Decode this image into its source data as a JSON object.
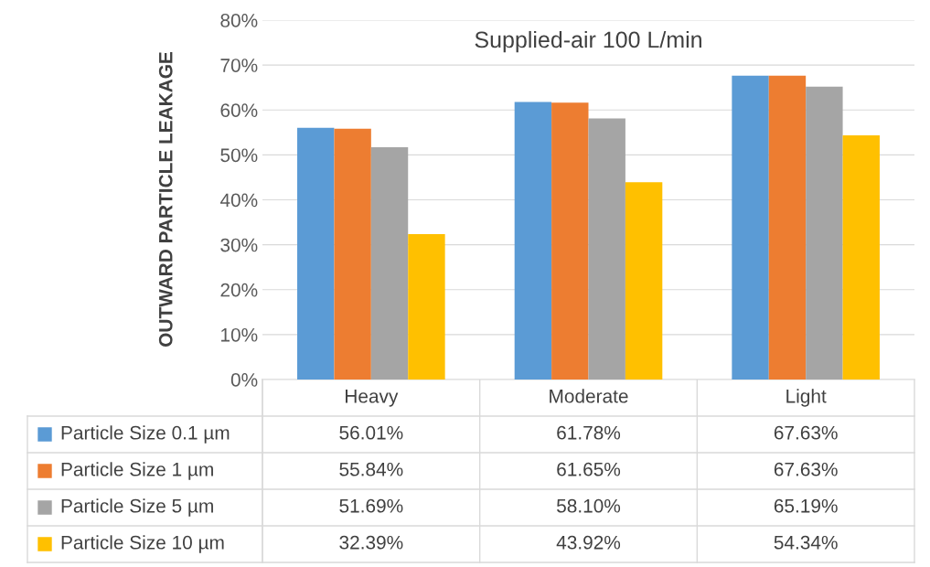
{
  "chart_data": {
    "type": "bar",
    "title": "Supplied-air 100 L/min",
    "ylabel": "OUTWARD PARTICLE LEAKAGE",
    "categories": [
      "Heavy",
      "Moderate",
      "Light"
    ],
    "series": [
      {
        "name": "Particle Size 0.1 µm",
        "color": "#5b9bd5",
        "values": [
          56.01,
          61.78,
          67.63
        ],
        "value_labels": [
          "56.01%",
          "61.78%",
          "67.63%"
        ]
      },
      {
        "name": "Particle Size 1 µm",
        "color": "#ed7d31",
        "values": [
          55.84,
          61.65,
          67.63
        ],
        "value_labels": [
          "55.84%",
          "61.65%",
          "67.63%"
        ]
      },
      {
        "name": "Particle Size 5 µm",
        "color": "#a5a5a5",
        "values": [
          51.69,
          58.1,
          65.19
        ],
        "value_labels": [
          "51.69%",
          "58.10%",
          "65.19%"
        ]
      },
      {
        "name": "Particle Size 10 µm",
        "color": "#ffc000",
        "values": [
          32.39,
          43.92,
          54.34
        ],
        "value_labels": [
          "32.39%",
          "43.92%",
          "54.34%"
        ]
      }
    ],
    "ylim": [
      0,
      80
    ],
    "yticks": [
      {
        "value": 0,
        "label": "0%"
      },
      {
        "value": 10,
        "label": "10%"
      },
      {
        "value": 20,
        "label": "20%"
      },
      {
        "value": 30,
        "label": "30%"
      },
      {
        "value": 40,
        "label": "40%"
      },
      {
        "value": 50,
        "label": "50%"
      },
      {
        "value": 60,
        "label": "60%"
      },
      {
        "value": 70,
        "label": "70%"
      },
      {
        "value": 80,
        "label": "80%"
      }
    ],
    "grid": "y",
    "legend": "bottom"
  }
}
